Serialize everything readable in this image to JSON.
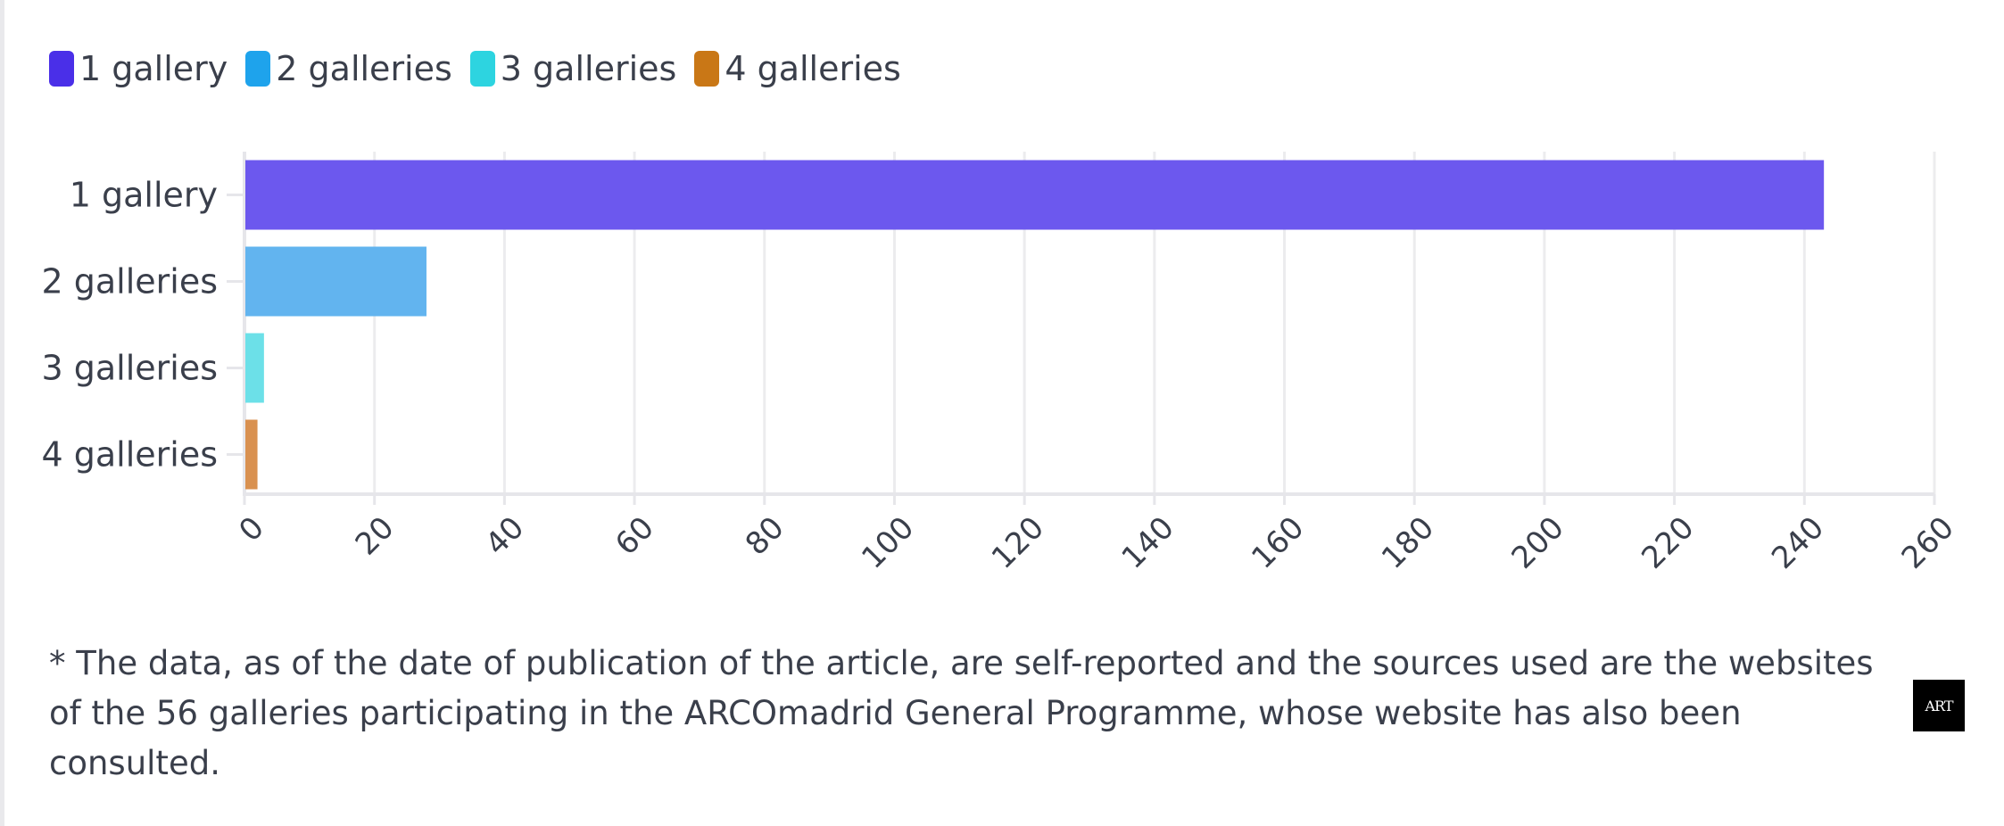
{
  "legend": {
    "items": [
      {
        "label": "1 gallery",
        "color": "#4a2fe8"
      },
      {
        "label": "2 galleries",
        "color": "#1ea3ec"
      },
      {
        "label": "3 galleries",
        "color": "#2dd4e0"
      },
      {
        "label": "4 galleries",
        "color": "#c97716"
      }
    ]
  },
  "chart_data": {
    "type": "bar",
    "orientation": "horizontal",
    "categories": [
      "1 gallery",
      "2 galleries",
      "3 galleries",
      "4 galleries"
    ],
    "values": [
      243,
      28,
      3,
      2
    ],
    "bar_colors": [
      "#6c58ee",
      "#62b4ef",
      "#6ce0e8",
      "#d99150"
    ],
    "xlim": [
      0,
      260
    ],
    "xticks": [
      0,
      20,
      40,
      60,
      80,
      100,
      120,
      140,
      160,
      180,
      200,
      220,
      240,
      260
    ],
    "grid": true,
    "legend_position": "top-left",
    "title": "",
    "xlabel": "",
    "ylabel": ""
  },
  "footnote": "* The data, as of the date of publication of the article, are self-reported and the sources used are the websites of the 56 galleries participating in the ARCOmadrid General Programme, whose website has also been consulted.",
  "logo": {
    "text": "ART"
  }
}
